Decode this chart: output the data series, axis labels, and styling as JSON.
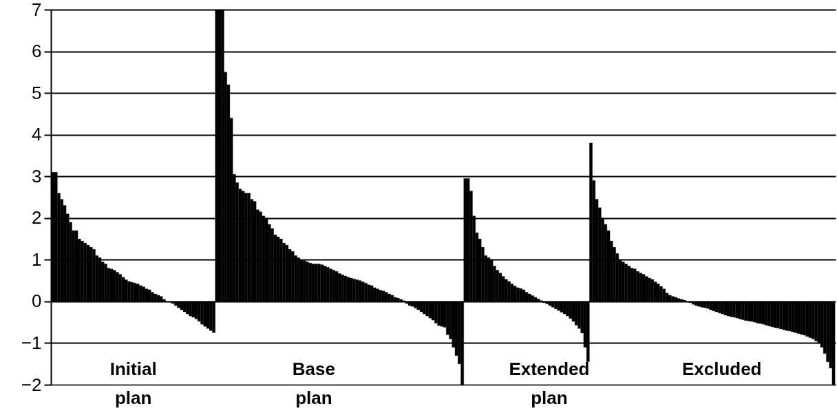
{
  "chart_data": {
    "type": "bar",
    "color": "#000000",
    "grid": "y",
    "tick_labels": "y",
    "ylim": [
      -2,
      7
    ],
    "yticks": [
      -2,
      -1,
      0,
      1,
      2,
      3,
      4,
      5,
      6,
      7
    ],
    "annotations": [
      "Initial plan",
      "Base plan",
      "Extended plan",
      "Excluded"
    ],
    "values": [
      3.1,
      3.1,
      2.6,
      2.45,
      2.3,
      2.1,
      1.9,
      1.7,
      1.7,
      1.5,
      1.45,
      1.4,
      1.35,
      1.3,
      1.25,
      1.1,
      1.05,
      0.95,
      0.9,
      0.8,
      0.78,
      0.75,
      0.7,
      0.65,
      0.58,
      0.52,
      0.48,
      0.46,
      0.44,
      0.42,
      0.38,
      0.35,
      0.3,
      0.28,
      0.22,
      0.18,
      0.15,
      0.12,
      0.05,
      0,
      -0.02,
      -0.05,
      -0.1,
      -0.15,
      -0.2,
      -0.25,
      -0.3,
      -0.35,
      -0.38,
      -0.42,
      -0.48,
      -0.55,
      -0.6,
      -0.65,
      -0.7,
      -0.75,
      7,
      7,
      7,
      5.5,
      5.2,
      4.4,
      3.05,
      2.85,
      2.7,
      2.65,
      2.6,
      2.6,
      2.45,
      2.4,
      2.2,
      2.15,
      2.05,
      2.0,
      1.85,
      1.75,
      1.6,
      1.55,
      1.5,
      1.4,
      1.35,
      1.25,
      1.2,
      1.1,
      1.05,
      1.0,
      0.98,
      0.95,
      0.92,
      0.9,
      0.9,
      0.9,
      0.88,
      0.85,
      0.82,
      0.78,
      0.75,
      0.72,
      0.67,
      0.64,
      0.61,
      0.58,
      0.56,
      0.54,
      0.52,
      0.5,
      0.47,
      0.44,
      0.4,
      0.38,
      0.33,
      0.3,
      0.27,
      0.25,
      0.22,
      0.18,
      0.15,
      0.1,
      0.08,
      0.05,
      0.02,
      -0.05,
      -0.1,
      -0.12,
      -0.16,
      -0.2,
      -0.25,
      -0.3,
      -0.35,
      -0.4,
      -0.45,
      -0.52,
      -0.58,
      -0.6,
      -0.62,
      -0.8,
      -0.9,
      -1.1,
      -1.3,
      -1.5,
      -2,
      2.95,
      2.95,
      2.65,
      2.05,
      1.65,
      1.5,
      1.3,
      1.1,
      1.05,
      1.0,
      0.85,
      0.75,
      0.68,
      0.6,
      0.53,
      0.48,
      0.42,
      0.37,
      0.33,
      0.31,
      0.28,
      0.22,
      0.18,
      0.14,
      0.1,
      0.06,
      0.02,
      -0.03,
      -0.06,
      -0.1,
      -0.14,
      -0.18,
      -0.22,
      -0.26,
      -0.3,
      -0.35,
      -0.41,
      -0.48,
      -0.57,
      -0.65,
      -0.76,
      -1.1,
      -1.45,
      3.8,
      2.9,
      2.45,
      2.25,
      2.0,
      1.85,
      1.7,
      1.45,
      1.3,
      1.15,
      1.0,
      0.95,
      0.9,
      0.85,
      0.8,
      0.78,
      0.72,
      0.68,
      0.65,
      0.6,
      0.56,
      0.53,
      0.47,
      0.42,
      0.36,
      0.3,
      0.2,
      0.15,
      0.12,
      0.1,
      0.07,
      0.05,
      0.03,
      0.0,
      -0.03,
      -0.07,
      -0.1,
      -0.12,
      -0.14,
      -0.15,
      -0.17,
      -0.2,
      -0.23,
      -0.25,
      -0.28,
      -0.3,
      -0.33,
      -0.35,
      -0.37,
      -0.38,
      -0.4,
      -0.42,
      -0.44,
      -0.46,
      -0.47,
      -0.48,
      -0.5,
      -0.52,
      -0.53,
      -0.55,
      -0.57,
      -0.59,
      -0.61,
      -0.63,
      -0.64,
      -0.66,
      -0.68,
      -0.7,
      -0.71,
      -0.73,
      -0.75,
      -0.77,
      -0.79,
      -0.81,
      -0.84,
      -0.87,
      -0.9,
      -0.95,
      -1.0,
      -1.1,
      -1.25,
      -1.45,
      -1.6,
      -2
    ]
  }
}
